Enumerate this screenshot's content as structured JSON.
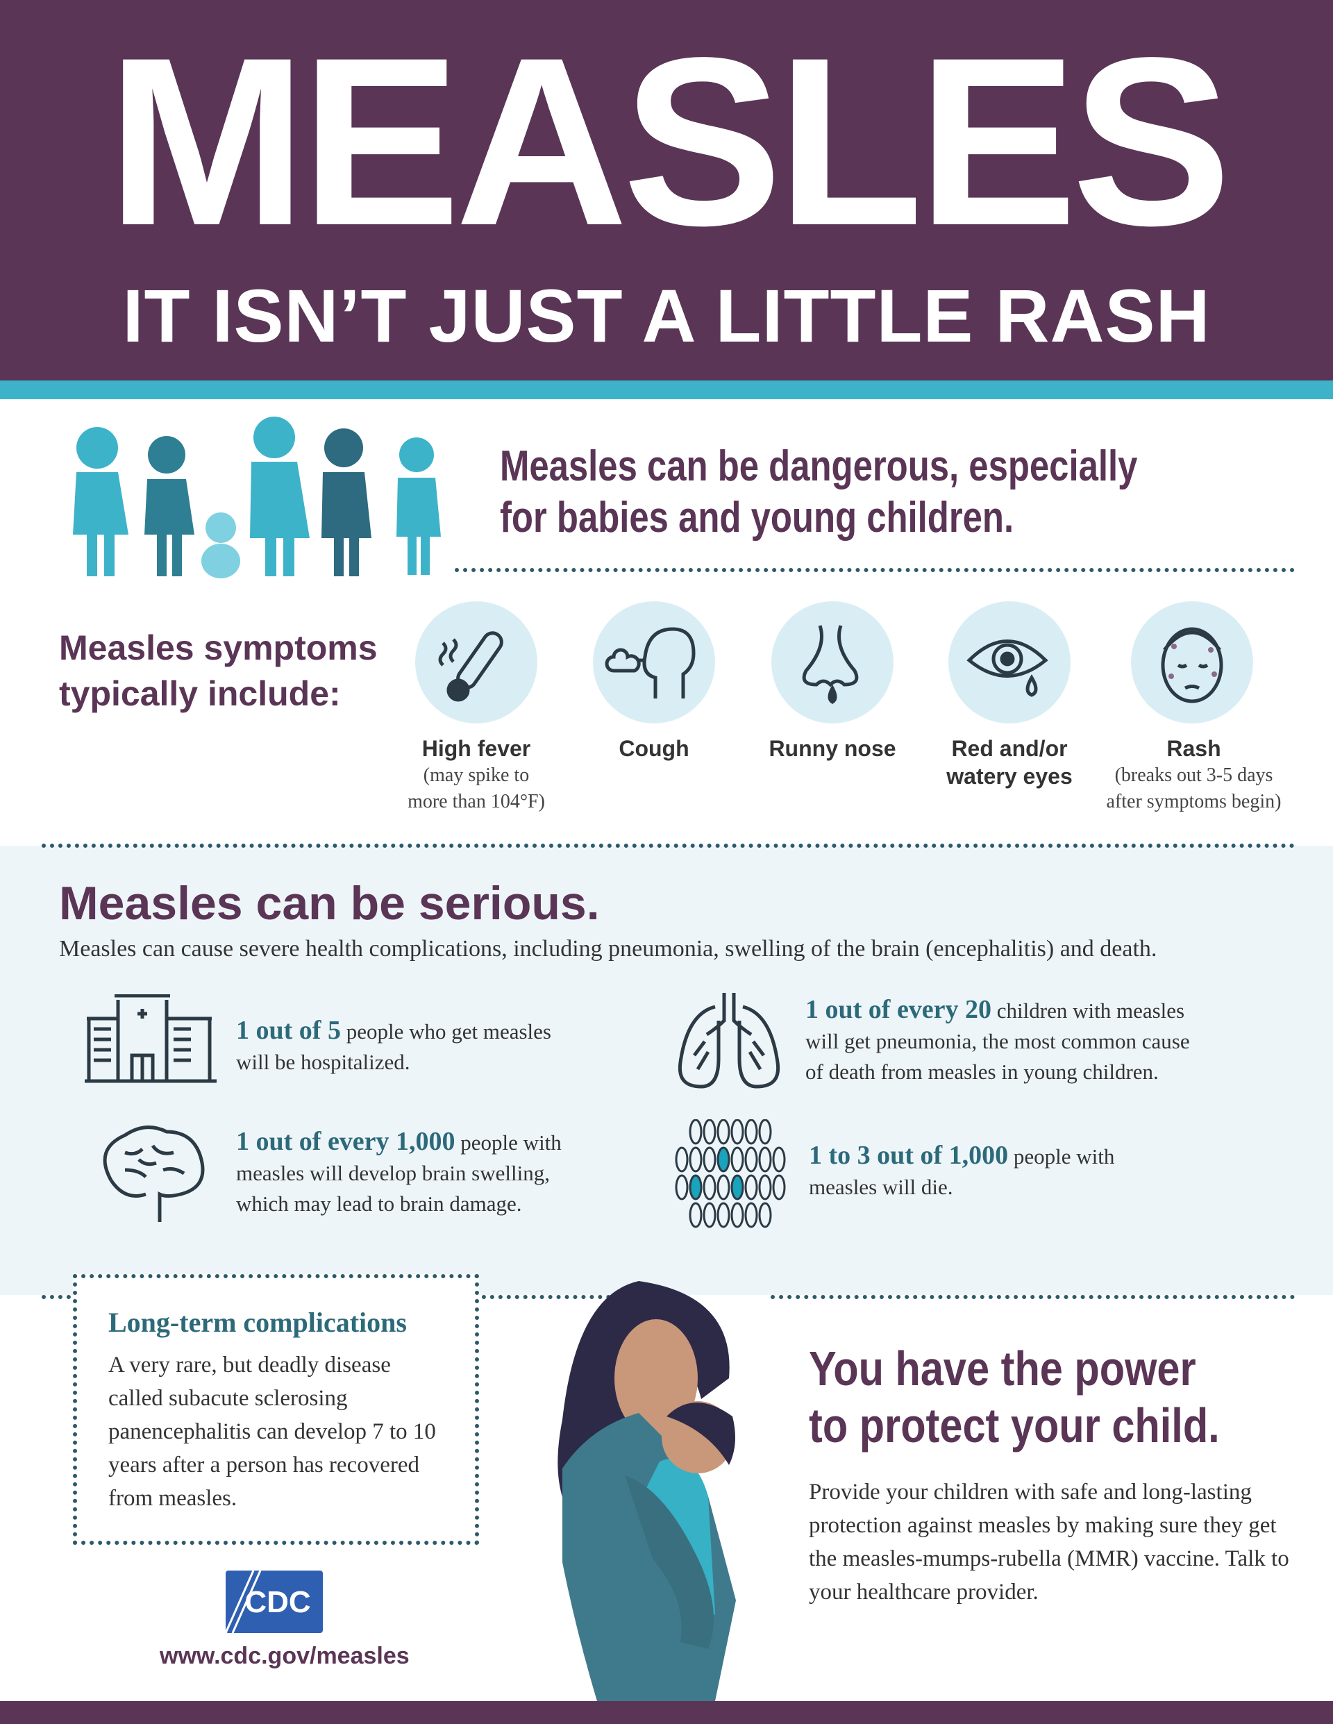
{
  "header": {
    "title": "MEASLES",
    "subtitle": "IT ISN’T JUST A LITTLE RASH"
  },
  "colors": {
    "purple": "#5a3556",
    "teal": "#3db3c9",
    "dark_teal": "#2c6a7a",
    "light_bg": "#eef5f9"
  },
  "intro": {
    "line1": "Measles can be dangerous, especially",
    "line2": "for babies and young children."
  },
  "symptoms": {
    "label_line1": "Measles symptoms",
    "label_line2": "typically include:",
    "items": [
      {
        "icon": "thermometer-icon",
        "name": "High fever",
        "note1": "(may spike to",
        "note2": "more than 104°F)"
      },
      {
        "icon": "cough-icon",
        "name": "Cough",
        "note1": "",
        "note2": ""
      },
      {
        "icon": "runny-nose-icon",
        "name": "Runny nose",
        "note1": "",
        "note2": ""
      },
      {
        "icon": "red-eye-icon",
        "name_line1": "Red and/or",
        "name": "watery eyes",
        "note1": "",
        "note2": ""
      },
      {
        "icon": "rash-face-icon",
        "name": "Rash",
        "note1": "(breaks out 3-5 days",
        "note2": "after symptoms begin)"
      }
    ]
  },
  "serious": {
    "heading": "Measles can be serious.",
    "intro": "Measles can cause severe health complications, including pneumonia, swelling of the brain (encephalitis) and death.",
    "stats": [
      {
        "icon": "hospital-icon",
        "highlight": "1 out of 5",
        "line1": " people who get measles",
        "line2": "will be hospitalized.",
        "line3": ""
      },
      {
        "icon": "lungs-icon",
        "highlight": "1 out of every 20",
        "line1": " children with measles",
        "line2": "will get pneumonia, the most common cause",
        "line3": "of death from measles in young children."
      },
      {
        "icon": "brain-icon",
        "highlight": "1 out of every 1,000",
        "line1": " people with",
        "line2": "measles will develop brain swelling,",
        "line3": "which may lead to brain damage."
      },
      {
        "icon": "crowd-icon",
        "highlight": "1 to 3 out of 1,000",
        "line1": " people with",
        "line2": "measles will die.",
        "line3": ""
      }
    ]
  },
  "long_term": {
    "title": "Long-term complications",
    "body": "A very rare, but deadly disease called subacute sclerosing panencephalitis can develop 7 to 10 years after a person has recovered from measles."
  },
  "protect": {
    "line1": "You have the power",
    "line2": "to protect your child.",
    "body": "Provide your children with safe and long-lasting protection against measles by making sure they get the measles-mumps-rubella (MMR) vaccine. Talk to your healthcare provider."
  },
  "footer": {
    "logo": "CDC",
    "url": "www.cdc.gov/measles"
  }
}
